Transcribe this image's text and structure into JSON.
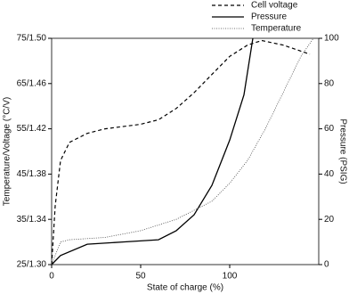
{
  "chart_data": {
    "type": "line",
    "xlabel": "State of charge (%)",
    "ylabel": "Temperature/Voltage (°C/V)",
    "y2label": "Pressure (PSIG)",
    "xlim": [
      0,
      150
    ],
    "xticks": [
      0,
      50,
      100
    ],
    "ylim": [
      25,
      75
    ],
    "yticks": [
      {
        "value": 25,
        "label": "25/1.30"
      },
      {
        "value": 35,
        "label": "35/1.34"
      },
      {
        "value": 45,
        "label": "45/1.38"
      },
      {
        "value": 55,
        "label": "55/1.42"
      },
      {
        "value": 65,
        "label": "65/1.46"
      },
      {
        "value": 75,
        "label": "75/1.50"
      }
    ],
    "y2lim": [
      0,
      100
    ],
    "y2ticks": [
      0,
      20,
      40,
      60,
      80,
      100
    ],
    "legend": "top-right",
    "series": [
      {
        "name": "Cell voltage",
        "color": "#000000",
        "linestyle": "dashed",
        "width": 1.2,
        "x": [
          0,
          2,
          5,
          10,
          20,
          30,
          50,
          60,
          70,
          80,
          90,
          100,
          110,
          118,
          130,
          145
        ],
        "values": [
          25,
          38,
          48,
          52,
          54,
          55,
          56,
          57,
          59.5,
          63,
          67,
          71,
          73.5,
          74.5,
          73.5,
          71.5
        ]
      },
      {
        "name": "Pressure",
        "color": "#000000",
        "linestyle": "solid",
        "width": 1.3,
        "axis": "y2",
        "x": [
          0,
          5,
          20,
          40,
          60,
          70,
          80,
          90,
          100,
          108,
          113
        ],
        "values": [
          0,
          4,
          9,
          10,
          11,
          15,
          22,
          35,
          55,
          75,
          100
        ]
      },
      {
        "name": "Temperature",
        "color": "#444444",
        "linestyle": "dotted",
        "width": 0.8,
        "x": [
          0,
          5,
          10,
          30,
          50,
          70,
          90,
          100,
          110,
          120,
          130,
          140,
          147
        ],
        "values": [
          25,
          30,
          30.5,
          31,
          32.5,
          35,
          39,
          43,
          48,
          55,
          63,
          71,
          75
        ]
      }
    ]
  }
}
